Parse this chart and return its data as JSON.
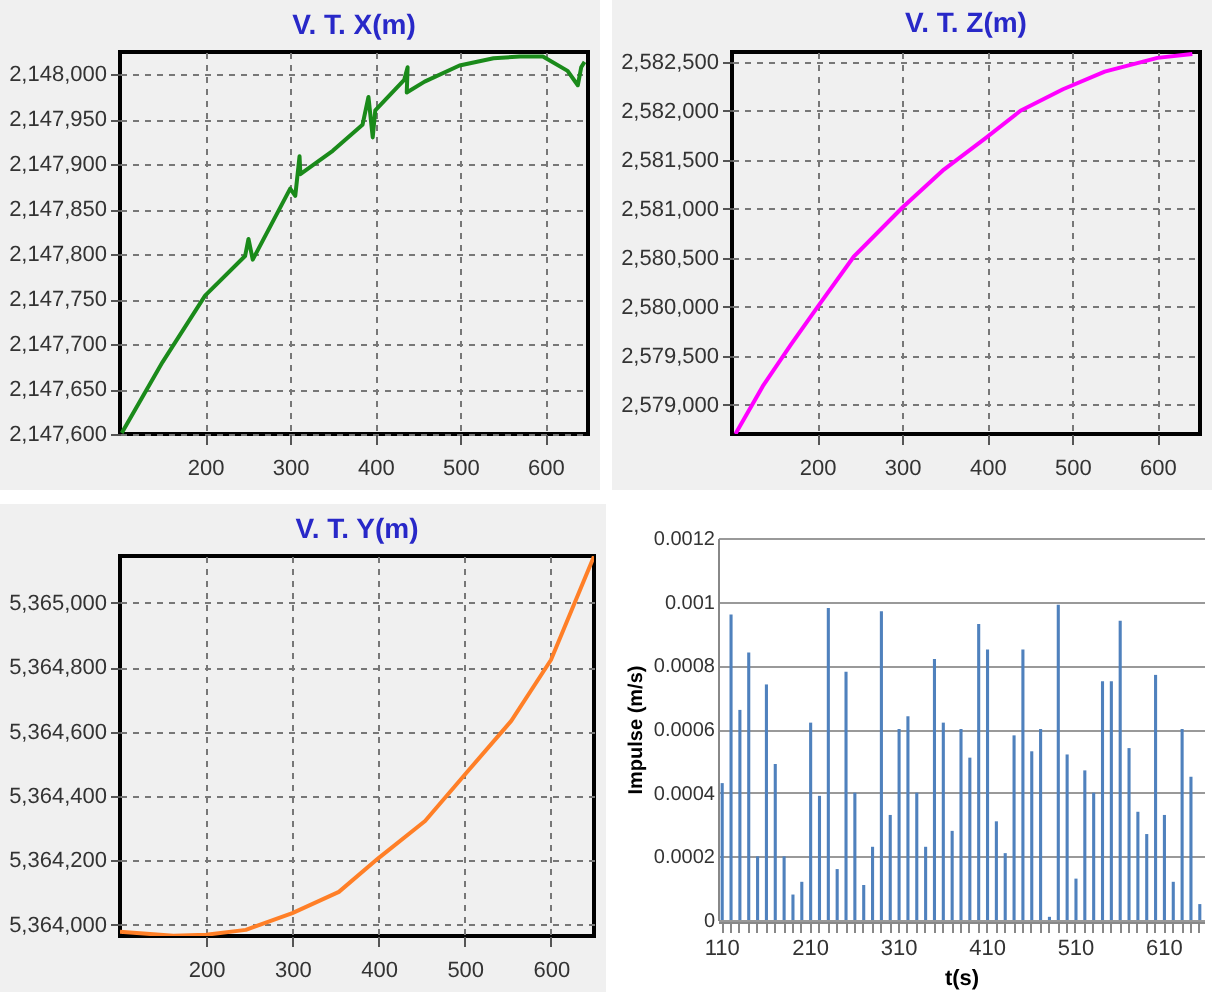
{
  "chart_data": [
    {
      "type": "line",
      "title": "V. T. X(m)",
      "x": [
        102,
        150,
        200,
        247,
        251,
        256,
        300,
        306,
        311,
        312,
        350,
        385,
        392,
        397,
        400,
        434,
        438,
        437,
        458,
        499,
        539,
        570,
        597,
        626,
        638,
        642,
        646
      ],
      "series": [
        {
          "color": "#1a8a1a",
          "values": [
            2147601,
            2147680,
            2147754,
            2147798,
            2147817,
            2147794,
            2147873,
            2147865,
            2147909,
            2147889,
            2147915,
            2147944,
            2147975,
            2147930,
            2147960,
            2147994,
            2148008,
            2147980,
            2147992,
            2148010,
            2148018,
            2148020,
            2148020,
            2148004,
            2147988,
            2148008,
            2148014
          ]
        }
      ],
      "xlim": [
        100,
        650
      ],
      "xticks": [
        200,
        300,
        400,
        500,
        600
      ],
      "ylim": [
        2147600,
        2148025
      ],
      "yticks": [
        {
          "value": 2147600,
          "label": "2,147,600"
        },
        {
          "value": 2147650,
          "label": "2,147,650"
        },
        {
          "value": 2147700,
          "label": "2,147,700"
        },
        {
          "value": 2147750,
          "label": "2,147,750"
        },
        {
          "value": 2147800,
          "label": "2,147,800"
        },
        {
          "value": 2147850,
          "label": "2,147,850"
        },
        {
          "value": 2147900,
          "label": "2,147,900"
        },
        {
          "value": 2147950,
          "label": "2,147,950"
        },
        {
          "value": 2148000,
          "label": "2,148,000"
        }
      ],
      "grid": true
    },
    {
      "type": "line",
      "title": "V. T. Z(m)",
      "x": [
        104,
        137,
        169,
        200,
        243,
        300,
        349,
        398,
        439,
        489,
        538,
        600,
        641
      ],
      "series": [
        {
          "color": "#ff00ff",
          "values": [
            2578700,
            2579200,
            2579610,
            2579990,
            2580510,
            2581010,
            2581400,
            2581720,
            2582000,
            2582220,
            2582400,
            2582540,
            2582580
          ]
        }
      ],
      "xlim": [
        100,
        650
      ],
      "xticks": [
        200,
        300,
        400,
        500,
        600
      ],
      "ylim": [
        2578700,
        2582600
      ],
      "yticks": [
        {
          "value": 2579000,
          "label": "2,579,000"
        },
        {
          "value": 2579500,
          "label": "2,579,500"
        },
        {
          "value": 2580000,
          "label": "2,580,000"
        },
        {
          "value": 2580500,
          "label": "2,580,500"
        },
        {
          "value": 2581000,
          "label": "2,581,000"
        },
        {
          "value": 2581500,
          "label": "2,581,500"
        },
        {
          "value": 2582000,
          "label": "2,582,000"
        },
        {
          "value": 2582500,
          "label": "2,582,500"
        }
      ],
      "grid": true
    },
    {
      "type": "line",
      "title": "V. T. Y(m)",
      "x": [
        100,
        162,
        200,
        246,
        300,
        354,
        400,
        454,
        504,
        554,
        600,
        650
      ],
      "series": [
        {
          "color": "#ff7f27",
          "values": [
            5363978,
            5363966,
            5363969,
            5363984,
            5364036,
            5364102,
            5364207,
            5364322,
            5364478,
            5364633,
            5364822,
            5365144
          ]
        }
      ],
      "xlim": [
        100,
        650
      ],
      "xticks": [
        200,
        300,
        400,
        500,
        600
      ],
      "ylim": [
        5363965,
        5365145
      ],
      "yticks": [
        {
          "value": 5364000,
          "label": "5,364,000"
        },
        {
          "value": 5364200,
          "label": "5,364,200"
        },
        {
          "value": 5364400,
          "label": "5,364,400"
        },
        {
          "value": 5364600,
          "label": "5,364,600"
        },
        {
          "value": 5364800,
          "label": "5,364,800"
        },
        {
          "value": 5365000,
          "label": "5,365,000"
        }
      ],
      "grid": true
    },
    {
      "type": "bar",
      "xlabel": "t(s)",
      "ylabel": "Impulse (m/s)",
      "categories": [
        "110",
        null,
        null,
        null,
        null,
        null,
        null,
        null,
        null,
        null,
        "210",
        null,
        null,
        null,
        null,
        null,
        null,
        null,
        null,
        null,
        "310",
        null,
        null,
        null,
        null,
        null,
        null,
        null,
        null,
        null,
        "410",
        null,
        null,
        null,
        null,
        null,
        null,
        null,
        null,
        null,
        "510",
        null,
        null,
        null,
        null,
        null,
        null,
        null,
        null,
        null,
        "610",
        null,
        null,
        null,
        null
      ],
      "series": [
        {
          "color": "#4f81bd",
          "values": [
            0.00043,
            0.00096,
            0.00066,
            0.00084,
            0.0002,
            0.00074,
            0.00049,
            0.0002,
            8e-05,
            0.00012,
            0.00062,
            0.00039,
            0.00098,
            0.00016,
            0.00078,
            0.0004,
            0.00011,
            0.00023,
            0.00097,
            0.00033,
            0.0006,
            0.00064,
            0.0004,
            0.00023,
            0.00082,
            0.00062,
            0.00028,
            0.0006,
            0.00051,
            0.00093,
            0.00085,
            0.00031,
            0.00021,
            0.00058,
            0.00085,
            0.00053,
            0.0006,
            1e-05,
            0.00099,
            0.00052,
            0.00013,
            0.00047,
            0.0004,
            0.00075,
            0.00075,
            0.00094,
            0.00054,
            0.00034,
            0.00027,
            0.00077,
            0.00033,
            0.00012,
            0.0006,
            0.00045,
            5e-05
          ]
        }
      ],
      "ylim": [
        0,
        0.0012
      ],
      "yticks": [
        0,
        0.0002,
        0.0004,
        0.0006,
        0.0008,
        0.001,
        0.0012
      ],
      "grid": "y"
    }
  ]
}
